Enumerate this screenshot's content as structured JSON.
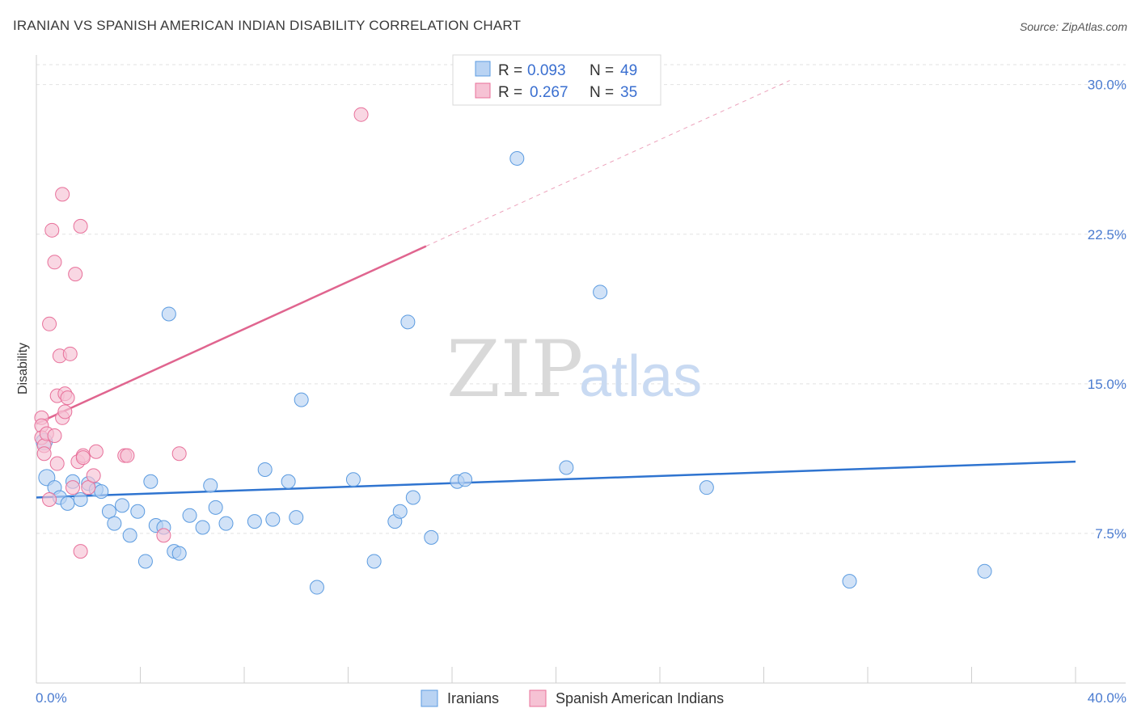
{
  "title": "IRANIAN VS SPANISH AMERICAN INDIAN DISABILITY CORRELATION CHART",
  "source": "Source: ZipAtlas.com",
  "watermark": {
    "zip": "ZIP",
    "atlas": "atlas"
  },
  "colors": {
    "iranians": "#5b9be0",
    "iranians_fill": "#b9d3f3",
    "spanish": "#e8709a",
    "spanish_fill": "#f6c2d4",
    "trend_iranians": "#2f74d0",
    "trend_spanish": "#e0658f",
    "tick_label": "#4a7bd0"
  },
  "legend": {
    "rows": [
      {
        "r_label": "R = ",
        "r_value": "0.093",
        "n_label": "N = ",
        "n_value": "49"
      },
      {
        "r_label": "R = ",
        "r_value": "0.267",
        "n_label": "N = ",
        "n_value": "35"
      }
    ]
  },
  "bottom_legend": [
    "Iranians",
    "Spanish American Indians"
  ],
  "chart_data": {
    "type": "scatter",
    "xlabel": "",
    "ylabel": "Disability",
    "xlim": [
      0,
      40
    ],
    "ylim": [
      0,
      31
    ],
    "x_tick_labels": [
      "0.0%",
      "40.0%"
    ],
    "y_ticks": [
      7.5,
      15.0,
      22.5,
      30.0
    ],
    "y_tick_labels": [
      "7.5%",
      "15.0%",
      "22.5%",
      "30.0%"
    ],
    "grid": true,
    "series": [
      {
        "name": "Iranians",
        "points": [
          [
            0.3,
            12.1
          ],
          [
            0.4,
            10.3
          ],
          [
            0.7,
            9.8
          ],
          [
            0.9,
            9.3
          ],
          [
            1.2,
            9.0
          ],
          [
            1.4,
            10.1
          ],
          [
            1.7,
            9.2
          ],
          [
            2.0,
            10.0
          ],
          [
            2.3,
            9.7
          ],
          [
            2.5,
            9.6
          ],
          [
            2.8,
            8.6
          ],
          [
            3.0,
            8.0
          ],
          [
            3.3,
            8.9
          ],
          [
            3.6,
            7.4
          ],
          [
            3.9,
            8.6
          ],
          [
            4.2,
            6.1
          ],
          [
            4.4,
            10.1
          ],
          [
            4.6,
            7.9
          ],
          [
            4.9,
            7.8
          ],
          [
            5.1,
            18.5
          ],
          [
            5.3,
            6.6
          ],
          [
            5.5,
            6.5
          ],
          [
            5.9,
            8.4
          ],
          [
            6.4,
            7.8
          ],
          [
            6.7,
            9.9
          ],
          [
            6.9,
            8.8
          ],
          [
            7.3,
            8.0
          ],
          [
            8.4,
            8.1
          ],
          [
            8.8,
            10.7
          ],
          [
            9.1,
            8.2
          ],
          [
            9.7,
            10.1
          ],
          [
            10.0,
            8.3
          ],
          [
            10.2,
            14.2
          ],
          [
            10.8,
            4.8
          ],
          [
            12.2,
            10.2
          ],
          [
            13.0,
            6.1
          ],
          [
            13.8,
            8.1
          ],
          [
            14.0,
            8.6
          ],
          [
            14.3,
            18.1
          ],
          [
            14.5,
            9.3
          ],
          [
            15.2,
            7.3
          ],
          [
            16.2,
            10.1
          ],
          [
            16.5,
            10.2
          ],
          [
            18.5,
            26.3
          ],
          [
            20.4,
            10.8
          ],
          [
            21.7,
            19.6
          ],
          [
            25.8,
            9.8
          ],
          [
            31.3,
            5.1
          ],
          [
            36.5,
            5.6
          ]
        ]
      },
      {
        "name": "Spanish American Indians",
        "points": [
          [
            0.2,
            13.3
          ],
          [
            0.2,
            12.9
          ],
          [
            0.2,
            12.3
          ],
          [
            0.3,
            11.9
          ],
          [
            0.3,
            11.5
          ],
          [
            0.4,
            12.5
          ],
          [
            0.5,
            18.0
          ],
          [
            0.5,
            9.2
          ],
          [
            0.6,
            22.7
          ],
          [
            0.7,
            12.4
          ],
          [
            0.7,
            21.1
          ],
          [
            0.8,
            14.4
          ],
          [
            0.8,
            11.0
          ],
          [
            0.9,
            16.4
          ],
          [
            1.0,
            13.3
          ],
          [
            1.0,
            24.5
          ],
          [
            1.1,
            14.5
          ],
          [
            1.1,
            13.6
          ],
          [
            1.2,
            14.3
          ],
          [
            1.3,
            16.5
          ],
          [
            1.4,
            9.8
          ],
          [
            1.5,
            20.5
          ],
          [
            1.6,
            11.1
          ],
          [
            1.7,
            22.9
          ],
          [
            1.7,
            6.6
          ],
          [
            1.8,
            11.4
          ],
          [
            1.8,
            11.3
          ],
          [
            2.0,
            9.8
          ],
          [
            2.2,
            10.4
          ],
          [
            2.3,
            11.6
          ],
          [
            3.4,
            11.4
          ],
          [
            3.5,
            11.4
          ],
          [
            4.9,
            7.4
          ],
          [
            5.5,
            11.5
          ],
          [
            12.5,
            28.5
          ]
        ]
      }
    ],
    "trend_lines": [
      {
        "series": "Iranians",
        "x": [
          0,
          40
        ],
        "y": [
          9.3,
          11.1
        ]
      },
      {
        "series": "Spanish American Indians",
        "x": [
          0,
          15
        ],
        "y": [
          13.0,
          21.9
        ],
        "dashed_extension_to_x": 29
      }
    ]
  }
}
